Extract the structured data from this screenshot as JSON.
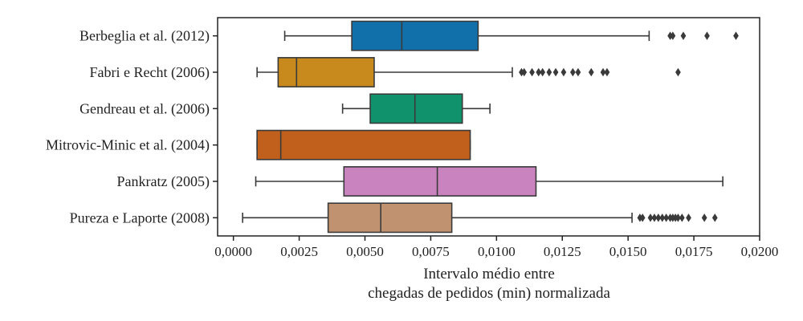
{
  "chart_data": {
    "type": "boxplot",
    "orientation": "horizontal",
    "xlabel_lines": [
      "Intervalo médio entre",
      "chegadas de pedidos (min) normalizada"
    ],
    "xlim": [
      -0.0006,
      0.02
    ],
    "xticks": [
      0,
      0.0025,
      0.005,
      0.0075,
      0.01,
      0.0125,
      0.015,
      0.0175,
      0.02
    ],
    "xtick_labels": [
      "0,0000",
      "0,0025",
      "0,0050",
      "0,0075",
      "0,0100",
      "0,0125",
      "0,0150",
      "0,0175",
      "0,0200"
    ],
    "grid": false,
    "legend": "none",
    "categories": [
      {
        "name": "Berbeglia et al. (2012)",
        "color": "#1170aa",
        "whisker_low": 0.00195,
        "q1": 0.0045,
        "median": 0.0064,
        "q3": 0.0093,
        "whisker_high": 0.0158,
        "outliers": [
          0.0166,
          0.0167,
          0.0171,
          0.018,
          0.0191
        ]
      },
      {
        "name": "Fabri e Recht (2006)",
        "color": "#c88a1c",
        "whisker_low": 0.0009,
        "q1": 0.0017,
        "median": 0.0024,
        "q3": 0.00535,
        "whisker_high": 0.0106,
        "outliers": [
          0.01095,
          0.01105,
          0.01135,
          0.0116,
          0.01175,
          0.012,
          0.01225,
          0.01255,
          0.0129,
          0.0131,
          0.0136,
          0.01405,
          0.0142,
          0.0169
        ]
      },
      {
        "name": "Gendreau et al. (2006)",
        "color": "#10926c",
        "whisker_low": 0.00415,
        "q1": 0.0052,
        "median": 0.0069,
        "q3": 0.0087,
        "whisker_high": 0.00975,
        "outliers": []
      },
      {
        "name": "Mitrovic-Minic et al. (2004)",
        "color": "#c0601c",
        "whisker_low": 0.0009,
        "q1": 0.0009,
        "median": 0.0018,
        "q3": 0.009,
        "whisker_high": 0.009,
        "outliers": []
      },
      {
        "name": "Pankratz (2005)",
        "color": "#c984c0",
        "whisker_low": 0.00085,
        "q1": 0.0042,
        "median": 0.00775,
        "q3": 0.0115,
        "whisker_high": 0.0186,
        "outliers": []
      },
      {
        "name": "Pureza e Laporte (2008)",
        "color": "#c19270",
        "whisker_low": 0.00035,
        "q1": 0.0036,
        "median": 0.0056,
        "q3": 0.0083,
        "whisker_high": 0.01515,
        "outliers": [
          0.01545,
          0.01555,
          0.01585,
          0.016,
          0.01615,
          0.0163,
          0.01645,
          0.0166,
          0.0167,
          0.0168,
          0.0169,
          0.01705,
          0.0173,
          0.0179,
          0.0183
        ]
      }
    ]
  }
}
